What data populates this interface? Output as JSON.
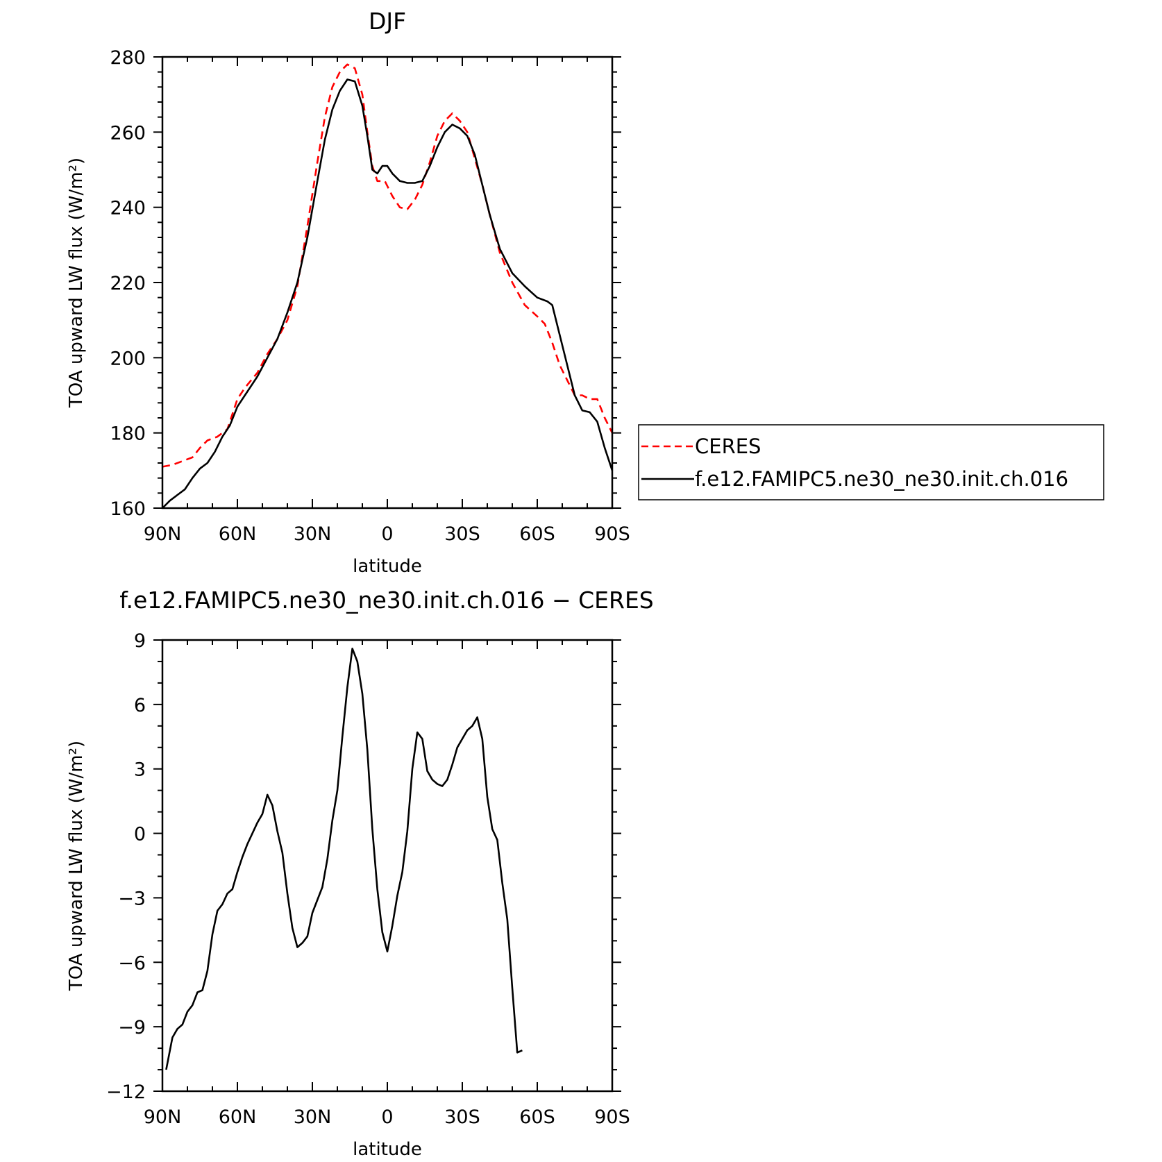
{
  "chart_data": [
    {
      "type": "line",
      "title": "DJF",
      "xlabel": "latitude",
      "ylabel": "TOA upward LW flux (W/m²)",
      "x_tick_values": [
        90,
        60,
        30,
        0,
        -30,
        -60,
        -90
      ],
      "x_tick_labels": [
        "90N",
        "60N",
        "30N",
        "0",
        "30S",
        "60S",
        "90S"
      ],
      "xlim": [
        90,
        -90
      ],
      "ylim": [
        160,
        280
      ],
      "y_ticks": [
        160,
        180,
        200,
        220,
        240,
        260,
        280
      ],
      "y_tick_labels": [
        "160",
        "180",
        "200",
        "220",
        "240",
        "260",
        "280"
      ],
      "grid": false,
      "legend_position": "right",
      "series": [
        {
          "name": "CERES",
          "color": "#ff0000",
          "dash": "dashed",
          "points": [
            [
              90,
              171
            ],
            [
              86,
              171.5
            ],
            [
              82,
              172.5
            ],
            [
              78,
              173.5
            ],
            [
              75,
              176
            ],
            [
              72,
              178
            ],
            [
              68,
              179
            ],
            [
              64,
              181
            ],
            [
              60,
              189
            ],
            [
              57,
              192
            ],
            [
              52,
              196
            ],
            [
              48,
              201
            ],
            [
              44,
              205
            ],
            [
              40,
              210
            ],
            [
              36,
              219
            ],
            [
              32,
              235
            ],
            [
              28,
              252
            ],
            [
              25,
              264
            ],
            [
              22,
              272
            ],
            [
              19,
              276
            ],
            [
              16,
              278
            ],
            [
              13,
              277
            ],
            [
              10,
              270
            ],
            [
              8,
              260
            ],
            [
              6,
              251
            ],
            [
              4,
              247
            ],
            [
              1,
              247
            ],
            [
              -2,
              243
            ],
            [
              -5,
              240
            ],
            [
              -8,
              239.5
            ],
            [
              -11,
              242
            ],
            [
              -14,
              246
            ],
            [
              -17,
              252
            ],
            [
              -20,
              259
            ],
            [
              -23,
              263
            ],
            [
              -26,
              265
            ],
            [
              -29,
              263
            ],
            [
              -32,
              260
            ],
            [
              -35,
              253
            ],
            [
              -38,
              246
            ],
            [
              -41,
              238
            ],
            [
              -45,
              228
            ],
            [
              -50,
              220
            ],
            [
              -55,
              214
            ],
            [
              -60,
              211
            ],
            [
              -63,
              209
            ],
            [
              -66,
              204
            ],
            [
              -69,
              198
            ],
            [
              -72,
              194
            ],
            [
              -75,
              190
            ],
            [
              -78,
              190
            ],
            [
              -81,
              189
            ],
            [
              -84,
              189
            ],
            [
              -87,
              184
            ],
            [
              -90,
              180
            ]
          ]
        },
        {
          "name": "f.e12.FAMIPC5.ne30_ne30.init.ch.016",
          "color": "#000000",
          "dash": "solid",
          "points": [
            [
              90,
              160
            ],
            [
              87,
              162
            ],
            [
              84,
              163.5
            ],
            [
              81,
              165
            ],
            [
              78,
              168
            ],
            [
              75,
              170.5
            ],
            [
              72,
              172
            ],
            [
              69,
              175
            ],
            [
              66,
              179
            ],
            [
              63,
              182
            ],
            [
              60,
              187
            ],
            [
              57,
              190
            ],
            [
              52,
              195
            ],
            [
              48,
              200
            ],
            [
              44,
              205
            ],
            [
              40,
              212
            ],
            [
              36,
              220
            ],
            [
              32,
              232
            ],
            [
              28,
              247
            ],
            [
              25,
              258
            ],
            [
              22,
              266
            ],
            [
              19,
              271
            ],
            [
              16,
              274
            ],
            [
              13,
              273.5
            ],
            [
              10,
              267
            ],
            [
              8,
              259
            ],
            [
              6,
              250
            ],
            [
              4,
              249
            ],
            [
              2,
              251
            ],
            [
              0,
              251
            ],
            [
              -2,
              249
            ],
            [
              -5,
              247
            ],
            [
              -8,
              246.5
            ],
            [
              -11,
              246.5
            ],
            [
              -14,
              247
            ],
            [
              -17,
              251
            ],
            [
              -20,
              256
            ],
            [
              -23,
              260
            ],
            [
              -26,
              262
            ],
            [
              -29,
              261
            ],
            [
              -32,
              259
            ],
            [
              -35,
              254
            ],
            [
              -38,
              246
            ],
            [
              -41,
              238
            ],
            [
              -45,
              229
            ],
            [
              -50,
              222.5
            ],
            [
              -55,
              219
            ],
            [
              -60,
              216
            ],
            [
              -64,
              215
            ],
            [
              -66,
              214
            ],
            [
              -69,
              206
            ],
            [
              -72,
              198
            ],
            [
              -75,
              190
            ],
            [
              -78,
              186
            ],
            [
              -81,
              185.5
            ],
            [
              -84,
              183
            ],
            [
              -87,
              176
            ],
            [
              -90,
              170
            ]
          ]
        }
      ]
    },
    {
      "type": "line",
      "title": "f.e12.FAMIPC5.ne30_ne30.init.ch.016 − CERES",
      "xlabel": "latitude",
      "ylabel": "TOA upward LW flux (W/m²)",
      "x_tick_values": [
        90,
        60,
        30,
        0,
        -30,
        -60,
        -90
      ],
      "x_tick_labels": [
        "90N",
        "60N",
        "30N",
        "0",
        "30S",
        "60S",
        "90S"
      ],
      "xlim": [
        90,
        -90
      ],
      "ylim": [
        -12,
        9
      ],
      "y_ticks": [
        -12,
        -9,
        -6,
        -3,
        0,
        3,
        6,
        9
      ],
      "y_tick_labels": [
        "−12",
        "−9",
        "−6",
        "−3",
        "0",
        "3",
        "6",
        "9"
      ],
      "grid": false,
      "series": [
        {
          "color": "#000000",
          "dash": "solid",
          "points": [
            [
              88.5,
              -11
            ],
            [
              86,
              -9.5
            ],
            [
              84,
              -9.1
            ],
            [
              82,
              -8.9
            ],
            [
              80,
              -8.3
            ],
            [
              78,
              -8
            ],
            [
              76,
              -7.4
            ],
            [
              74,
              -7.3
            ],
            [
              72,
              -6.4
            ],
            [
              70,
              -4.7
            ],
            [
              68,
              -3.6
            ],
            [
              66,
              -3.3
            ],
            [
              64,
              -2.8
            ],
            [
              62,
              -2.6
            ],
            [
              60,
              -1.8
            ],
            [
              58,
              -1.1
            ],
            [
              56,
              -0.5
            ],
            [
              54,
              0
            ],
            [
              52,
              0.5
            ],
            [
              50,
              0.9
            ],
            [
              48,
              1.8
            ],
            [
              46,
              1.3
            ],
            [
              44,
              0.1
            ],
            [
              42,
              -0.9
            ],
            [
              40,
              -2.8
            ],
            [
              38,
              -4.4
            ],
            [
              36,
              -5.3
            ],
            [
              34,
              -5.1
            ],
            [
              32,
              -4.8
            ],
            [
              30,
              -3.7
            ],
            [
              28,
              -3.1
            ],
            [
              26,
              -2.5
            ],
            [
              24,
              -1.2
            ],
            [
              22,
              0.6
            ],
            [
              20,
              2
            ],
            [
              18,
              4.5
            ],
            [
              16,
              6.8
            ],
            [
              14,
              8.6
            ],
            [
              12,
              8
            ],
            [
              10,
              6.5
            ],
            [
              8,
              3.9
            ],
            [
              6,
              0.2
            ],
            [
              4,
              -2.6
            ],
            [
              2,
              -4.6
            ],
            [
              0,
              -5.5
            ],
            [
              -2,
              -4.3
            ],
            [
              -4,
              -2.9
            ],
            [
              -6,
              -1.8
            ],
            [
              -8,
              0.1
            ],
            [
              -10,
              3
            ],
            [
              -12,
              4.7
            ],
            [
              -14,
              4.4
            ],
            [
              -16,
              2.9
            ],
            [
              -18,
              2.5
            ],
            [
              -20,
              2.3
            ],
            [
              -22,
              2.2
            ],
            [
              -24,
              2.5
            ],
            [
              -26,
              3.2
            ],
            [
              -28,
              4
            ],
            [
              -30,
              4.4
            ],
            [
              -32,
              4.8
            ],
            [
              -34,
              5
            ],
            [
              -36,
              5.4
            ],
            [
              -38,
              4.4
            ],
            [
              -40,
              1.7
            ],
            [
              -42,
              0.2
            ],
            [
              -44,
              -0.3
            ],
            [
              -46,
              -2.3
            ],
            [
              -48,
              -4
            ],
            [
              -50,
              -7.2
            ],
            [
              -52,
              -10.2
            ],
            [
              -54,
              -10.1
            ]
          ]
        }
      ]
    }
  ]
}
